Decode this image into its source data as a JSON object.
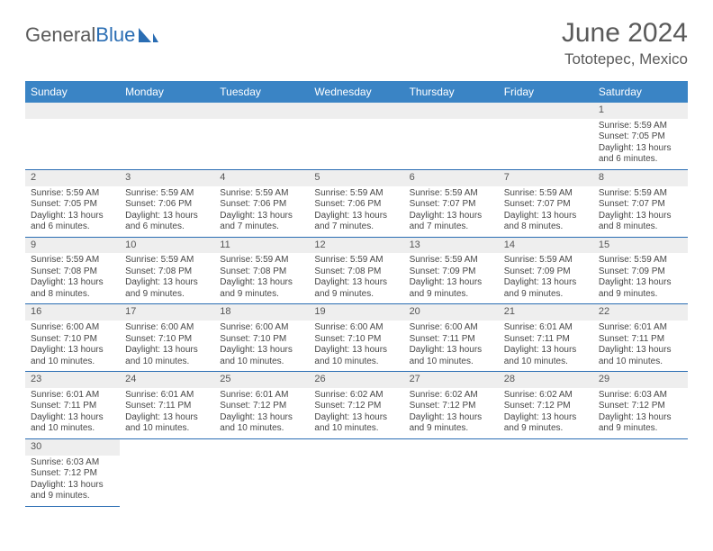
{
  "brand": {
    "part1": "General",
    "part2": "Blue"
  },
  "title": "June 2024",
  "subtitle": "Tototepec, Mexico",
  "colors": {
    "header_bg": "#3a84c5",
    "header_fg": "#ffffff",
    "rule": "#2a6db3",
    "daybg": "#eeeeee",
    "text": "#474747",
    "title": "#5a5a5a"
  },
  "weekdays": [
    "Sunday",
    "Monday",
    "Tuesday",
    "Wednesday",
    "Thursday",
    "Friday",
    "Saturday"
  ],
  "weeks": [
    [
      null,
      null,
      null,
      null,
      null,
      null,
      {
        "n": "1",
        "sr": "Sunrise: 5:59 AM",
        "ss": "Sunset: 7:05 PM",
        "dl": "Daylight: 13 hours and 6 minutes."
      }
    ],
    [
      {
        "n": "2",
        "sr": "Sunrise: 5:59 AM",
        "ss": "Sunset: 7:05 PM",
        "dl": "Daylight: 13 hours and 6 minutes."
      },
      {
        "n": "3",
        "sr": "Sunrise: 5:59 AM",
        "ss": "Sunset: 7:06 PM",
        "dl": "Daylight: 13 hours and 6 minutes."
      },
      {
        "n": "4",
        "sr": "Sunrise: 5:59 AM",
        "ss": "Sunset: 7:06 PM",
        "dl": "Daylight: 13 hours and 7 minutes."
      },
      {
        "n": "5",
        "sr": "Sunrise: 5:59 AM",
        "ss": "Sunset: 7:06 PM",
        "dl": "Daylight: 13 hours and 7 minutes."
      },
      {
        "n": "6",
        "sr": "Sunrise: 5:59 AM",
        "ss": "Sunset: 7:07 PM",
        "dl": "Daylight: 13 hours and 7 minutes."
      },
      {
        "n": "7",
        "sr": "Sunrise: 5:59 AM",
        "ss": "Sunset: 7:07 PM",
        "dl": "Daylight: 13 hours and 8 minutes."
      },
      {
        "n": "8",
        "sr": "Sunrise: 5:59 AM",
        "ss": "Sunset: 7:07 PM",
        "dl": "Daylight: 13 hours and 8 minutes."
      }
    ],
    [
      {
        "n": "9",
        "sr": "Sunrise: 5:59 AM",
        "ss": "Sunset: 7:08 PM",
        "dl": "Daylight: 13 hours and 8 minutes."
      },
      {
        "n": "10",
        "sr": "Sunrise: 5:59 AM",
        "ss": "Sunset: 7:08 PM",
        "dl": "Daylight: 13 hours and 9 minutes."
      },
      {
        "n": "11",
        "sr": "Sunrise: 5:59 AM",
        "ss": "Sunset: 7:08 PM",
        "dl": "Daylight: 13 hours and 9 minutes."
      },
      {
        "n": "12",
        "sr": "Sunrise: 5:59 AM",
        "ss": "Sunset: 7:08 PM",
        "dl": "Daylight: 13 hours and 9 minutes."
      },
      {
        "n": "13",
        "sr": "Sunrise: 5:59 AM",
        "ss": "Sunset: 7:09 PM",
        "dl": "Daylight: 13 hours and 9 minutes."
      },
      {
        "n": "14",
        "sr": "Sunrise: 5:59 AM",
        "ss": "Sunset: 7:09 PM",
        "dl": "Daylight: 13 hours and 9 minutes."
      },
      {
        "n": "15",
        "sr": "Sunrise: 5:59 AM",
        "ss": "Sunset: 7:09 PM",
        "dl": "Daylight: 13 hours and 9 minutes."
      }
    ],
    [
      {
        "n": "16",
        "sr": "Sunrise: 6:00 AM",
        "ss": "Sunset: 7:10 PM",
        "dl": "Daylight: 13 hours and 10 minutes."
      },
      {
        "n": "17",
        "sr": "Sunrise: 6:00 AM",
        "ss": "Sunset: 7:10 PM",
        "dl": "Daylight: 13 hours and 10 minutes."
      },
      {
        "n": "18",
        "sr": "Sunrise: 6:00 AM",
        "ss": "Sunset: 7:10 PM",
        "dl": "Daylight: 13 hours and 10 minutes."
      },
      {
        "n": "19",
        "sr": "Sunrise: 6:00 AM",
        "ss": "Sunset: 7:10 PM",
        "dl": "Daylight: 13 hours and 10 minutes."
      },
      {
        "n": "20",
        "sr": "Sunrise: 6:00 AM",
        "ss": "Sunset: 7:11 PM",
        "dl": "Daylight: 13 hours and 10 minutes."
      },
      {
        "n": "21",
        "sr": "Sunrise: 6:01 AM",
        "ss": "Sunset: 7:11 PM",
        "dl": "Daylight: 13 hours and 10 minutes."
      },
      {
        "n": "22",
        "sr": "Sunrise: 6:01 AM",
        "ss": "Sunset: 7:11 PM",
        "dl": "Daylight: 13 hours and 10 minutes."
      }
    ],
    [
      {
        "n": "23",
        "sr": "Sunrise: 6:01 AM",
        "ss": "Sunset: 7:11 PM",
        "dl": "Daylight: 13 hours and 10 minutes."
      },
      {
        "n": "24",
        "sr": "Sunrise: 6:01 AM",
        "ss": "Sunset: 7:11 PM",
        "dl": "Daylight: 13 hours and 10 minutes."
      },
      {
        "n": "25",
        "sr": "Sunrise: 6:01 AM",
        "ss": "Sunset: 7:12 PM",
        "dl": "Daylight: 13 hours and 10 minutes."
      },
      {
        "n": "26",
        "sr": "Sunrise: 6:02 AM",
        "ss": "Sunset: 7:12 PM",
        "dl": "Daylight: 13 hours and 10 minutes."
      },
      {
        "n": "27",
        "sr": "Sunrise: 6:02 AM",
        "ss": "Sunset: 7:12 PM",
        "dl": "Daylight: 13 hours and 9 minutes."
      },
      {
        "n": "28",
        "sr": "Sunrise: 6:02 AM",
        "ss": "Sunset: 7:12 PM",
        "dl": "Daylight: 13 hours and 9 minutes."
      },
      {
        "n": "29",
        "sr": "Sunrise: 6:03 AM",
        "ss": "Sunset: 7:12 PM",
        "dl": "Daylight: 13 hours and 9 minutes."
      }
    ],
    [
      {
        "n": "30",
        "sr": "Sunrise: 6:03 AM",
        "ss": "Sunset: 7:12 PM",
        "dl": "Daylight: 13 hours and 9 minutes."
      },
      null,
      null,
      null,
      null,
      null,
      null
    ]
  ]
}
